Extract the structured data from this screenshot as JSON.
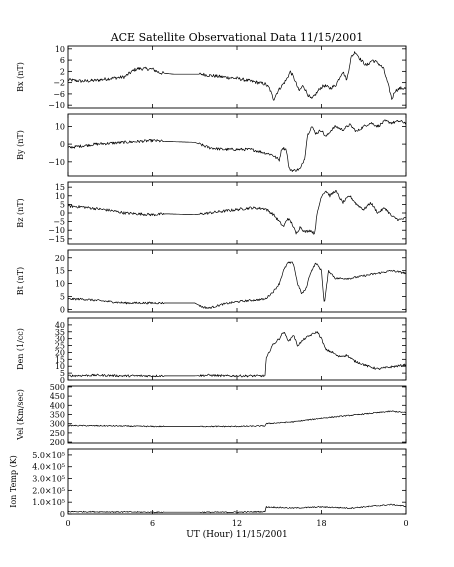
{
  "chart_data": {
    "type": "line",
    "title": "ACE Satellite Observational Data   11/15/2001",
    "xlabel": "UT (Hour)   11/15/2001",
    "x_tick_labels": [
      "0",
      "6",
      "12",
      "18",
      "0"
    ],
    "x_tick_hours": [
      0,
      6,
      12,
      18,
      24
    ],
    "xlim": [
      0,
      24
    ],
    "panels": [
      {
        "ylabel": "Bx (nT)",
        "ylim": [
          -11,
          11
        ],
        "y_ticks": [
          -10,
          -6,
          -2,
          2,
          6,
          10
        ],
        "y_tick_labels": [
          "−10",
          "−6",
          "−2",
          "2",
          "6",
          "10"
        ],
        "noise": 0.6,
        "series": [
          [
            0,
            -1
          ],
          [
            1,
            -1.5
          ],
          [
            2,
            -1.2
          ],
          [
            3,
            -0.5
          ],
          [
            4,
            0
          ],
          [
            4.7,
            2.5
          ],
          [
            5,
            3
          ],
          [
            6,
            2.8
          ],
          [
            6.5,
            1.5
          ],
          [
            7.5,
            1
          ],
          [
            9,
            1
          ],
          [
            9.5,
            1
          ],
          [
            10,
            0.6
          ],
          [
            11,
            0
          ],
          [
            12,
            -0.5
          ],
          [
            13,
            -1.5
          ],
          [
            14,
            -2.5
          ],
          [
            14.3,
            -4
          ],
          [
            14.6,
            -8
          ],
          [
            14.9,
            -5
          ],
          [
            15.2,
            -3
          ],
          [
            15.5,
            -1
          ],
          [
            15.8,
            2
          ],
          [
            16.1,
            -1
          ],
          [
            16.4,
            -5
          ],
          [
            16.7,
            -3
          ],
          [
            17,
            -6
          ],
          [
            17.3,
            -8
          ],
          [
            17.6,
            -6
          ],
          [
            17.9,
            -4
          ],
          [
            18.2,
            -3
          ],
          [
            18.6,
            -4
          ],
          [
            19.0,
            -3
          ],
          [
            19.5,
            2
          ],
          [
            19.8,
            -1
          ],
          [
            20.1,
            7
          ],
          [
            20.4,
            9
          ],
          [
            20.8,
            6
          ],
          [
            21.2,
            4
          ],
          [
            21.6,
            6
          ],
          [
            22.0,
            5
          ],
          [
            22.4,
            3
          ],
          [
            22.8,
            -4
          ],
          [
            23.0,
            -8
          ],
          [
            23.2,
            -5
          ],
          [
            23.6,
            -4
          ],
          [
            24,
            -4
          ]
        ]
      },
      {
        "ylabel": "By (nT)",
        "ylim": [
          -18,
          17
        ],
        "y_ticks": [
          -10,
          0,
          10
        ],
        "y_tick_labels": [
          "−10",
          "0",
          "10"
        ],
        "noise": 0.8,
        "series": [
          [
            0,
            -2
          ],
          [
            1,
            -1
          ],
          [
            2,
            0
          ],
          [
            3,
            0.5
          ],
          [
            4,
            1
          ],
          [
            5,
            1.5
          ],
          [
            6,
            2
          ],
          [
            7,
            1.5
          ],
          [
            9,
            1
          ],
          [
            10,
            -2
          ],
          [
            11,
            -3
          ],
          [
            12,
            -3
          ],
          [
            13,
            -3
          ],
          [
            14,
            -5
          ],
          [
            14.5,
            -6
          ],
          [
            15,
            -9
          ],
          [
            15.2,
            -2
          ],
          [
            15.5,
            -3
          ],
          [
            15.7,
            -14
          ],
          [
            16,
            -15
          ],
          [
            16.5,
            -14
          ],
          [
            16.8,
            -8
          ],
          [
            17,
            5
          ],
          [
            17.3,
            10
          ],
          [
            17.6,
            6
          ],
          [
            18,
            8
          ],
          [
            18.3,
            4
          ],
          [
            18.7,
            8
          ],
          [
            19.0,
            10
          ],
          [
            19.5,
            8
          ],
          [
            20,
            11
          ],
          [
            20.5,
            7
          ],
          [
            21,
            10
          ],
          [
            21.5,
            12
          ],
          [
            22,
            10
          ],
          [
            22.5,
            13
          ],
          [
            23,
            12
          ],
          [
            23.5,
            13
          ],
          [
            24,
            12
          ]
        ]
      },
      {
        "ylabel": "Bz (nT)",
        "ylim": [
          -18,
          18
        ],
        "y_ticks": [
          -15,
          -10,
          -5,
          0,
          5,
          10,
          15
        ],
        "y_tick_labels": [
          "−15",
          "−10",
          "−5",
          "0",
          "5",
          "10",
          "15"
        ],
        "noise": 0.8,
        "series": [
          [
            0,
            4
          ],
          [
            1,
            3.5
          ],
          [
            2,
            2.5
          ],
          [
            3,
            1.5
          ],
          [
            4,
            0
          ],
          [
            5,
            -0.5
          ],
          [
            6,
            -1
          ],
          [
            7,
            -0.5
          ],
          [
            9,
            -1
          ],
          [
            10,
            0
          ],
          [
            11,
            1
          ],
          [
            12,
            2
          ],
          [
            13,
            3
          ],
          [
            14,
            2.5
          ],
          [
            14.6,
            -1
          ],
          [
            15,
            -5
          ],
          [
            15.3,
            -8
          ],
          [
            15.6,
            -3
          ],
          [
            15.9,
            -6
          ],
          [
            16.2,
            -12
          ],
          [
            16.5,
            -8
          ],
          [
            16.8,
            -11
          ],
          [
            17.2,
            -10
          ],
          [
            17.5,
            -12
          ],
          [
            17.7,
            0
          ],
          [
            18,
            10
          ],
          [
            18.3,
            13
          ],
          [
            18.6,
            10
          ],
          [
            19,
            13
          ],
          [
            19.5,
            6
          ],
          [
            20,
            10
          ],
          [
            20.5,
            5
          ],
          [
            21,
            2
          ],
          [
            21.5,
            6
          ],
          [
            22,
            0
          ],
          [
            22.5,
            3
          ],
          [
            23,
            -2
          ],
          [
            23.5,
            -4
          ],
          [
            24,
            -3
          ]
        ]
      },
      {
        "ylabel": "Bt (nT)",
        "ylim": [
          -1,
          23
        ],
        "y_ticks": [
          0,
          5,
          10,
          15,
          20
        ],
        "y_tick_labels": [
          "0",
          "5",
          "10",
          "15",
          "20"
        ],
        "noise": 0.4,
        "series": [
          [
            0,
            4
          ],
          [
            1,
            4
          ],
          [
            2,
            3.5
          ],
          [
            3,
            3
          ],
          [
            4,
            2.5
          ],
          [
            5,
            2.5
          ],
          [
            6,
            2.5
          ],
          [
            7,
            2.5
          ],
          [
            9,
            2.5
          ],
          [
            9.5,
            1
          ],
          [
            10,
            0.5
          ],
          [
            11,
            2
          ],
          [
            12,
            3
          ],
          [
            13,
            3.5
          ],
          [
            14,
            4
          ],
          [
            14.6,
            7
          ],
          [
            15,
            10
          ],
          [
            15.3,
            15
          ],
          [
            15.6,
            18
          ],
          [
            16,
            18
          ],
          [
            16.3,
            10
          ],
          [
            16.6,
            6
          ],
          [
            16.9,
            8
          ],
          [
            17.2,
            14
          ],
          [
            17.6,
            18
          ],
          [
            18,
            15
          ],
          [
            18.2,
            2
          ],
          [
            18.5,
            15
          ],
          [
            19,
            12
          ],
          [
            20,
            12
          ],
          [
            21,
            13
          ],
          [
            22,
            14
          ],
          [
            23,
            15
          ],
          [
            24,
            14
          ]
        ]
      },
      {
        "ylabel": "Den (1/cc)",
        "ylim": [
          0,
          45
        ],
        "y_ticks": [
          0,
          5,
          10,
          15,
          20,
          25,
          30,
          35,
          40
        ],
        "y_tick_labels": [
          "0",
          "5",
          "10",
          "15",
          "20",
          "25",
          "30",
          "35",
          "40"
        ],
        "noise": 0.8,
        "series": [
          [
            0,
            3
          ],
          [
            2,
            3.5
          ],
          [
            4,
            3
          ],
          [
            6,
            3
          ],
          [
            9,
            3
          ],
          [
            10,
            3.5
          ],
          [
            11,
            3
          ],
          [
            12,
            3
          ],
          [
            13,
            3
          ],
          [
            14,
            3
          ],
          [
            14.05,
            15
          ],
          [
            14.5,
            25
          ],
          [
            15,
            30
          ],
          [
            15.3,
            35
          ],
          [
            15.7,
            28
          ],
          [
            16,
            33
          ],
          [
            16.3,
            25
          ],
          [
            16.8,
            30
          ],
          [
            17.3,
            33
          ],
          [
            17.7,
            35
          ],
          [
            18,
            30
          ],
          [
            18.3,
            22
          ],
          [
            18.8,
            20
          ],
          [
            19.2,
            17
          ],
          [
            19.8,
            18
          ],
          [
            20.3,
            14
          ],
          [
            20.8,
            12
          ],
          [
            21.3,
            10
          ],
          [
            22,
            8
          ],
          [
            22.6,
            9
          ],
          [
            23.3,
            10
          ],
          [
            24,
            11
          ]
        ]
      },
      {
        "ylabel": "Vel (Km/sec)",
        "ylim": [
          195,
          505
        ],
        "y_ticks": [
          200,
          250,
          300,
          350,
          400,
          450,
          500
        ],
        "y_tick_labels": [
          "200",
          "250",
          "300",
          "350",
          "400",
          "450",
          "500"
        ],
        "noise": 3,
        "series": [
          [
            0,
            290
          ],
          [
            3,
            288
          ],
          [
            6,
            285
          ],
          [
            9,
            285
          ],
          [
            12,
            285
          ],
          [
            14,
            288
          ],
          [
            14.05,
            300
          ],
          [
            16,
            310
          ],
          [
            18,
            330
          ],
          [
            20,
            345
          ],
          [
            22,
            360
          ],
          [
            23,
            368
          ],
          [
            24,
            360
          ]
        ]
      },
      {
        "ylabel": "Ion Temp (K)",
        "ylim": [
          0,
          550000
        ],
        "y_ticks": [
          0,
          100000,
          200000,
          300000,
          400000,
          500000
        ],
        "y_tick_labels": [
          "0",
          "1.0×10⁵",
          "2.0×10⁵",
          "3.0×10⁵",
          "4.0×10⁵",
          "5.0×10⁵"
        ],
        "noise": 5000,
        "series": [
          [
            0,
            20000
          ],
          [
            3,
            18000
          ],
          [
            6,
            15000
          ],
          [
            9,
            15000
          ],
          [
            12,
            15000
          ],
          [
            14,
            20000
          ],
          [
            14.05,
            60000
          ],
          [
            16,
            50000
          ],
          [
            18,
            60000
          ],
          [
            20,
            50000
          ],
          [
            22,
            70000
          ],
          [
            23,
            80000
          ],
          [
            24,
            65000
          ]
        ]
      }
    ]
  }
}
